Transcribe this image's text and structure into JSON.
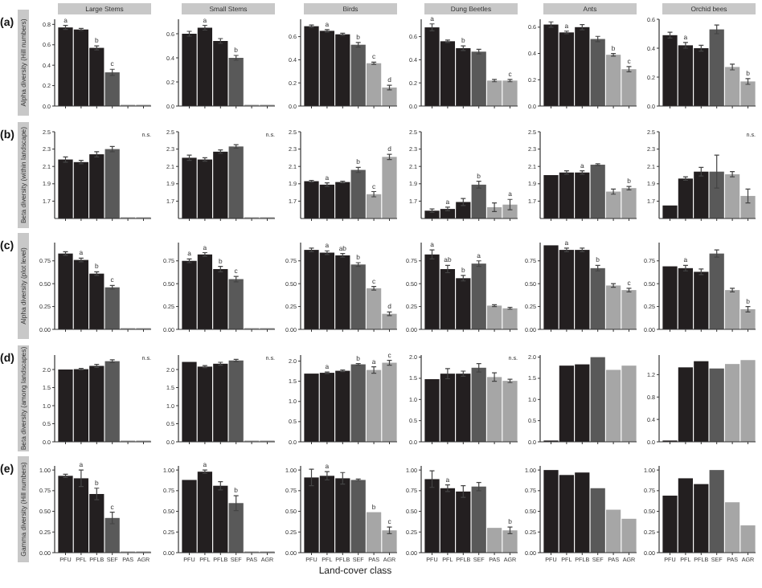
{
  "chart_data": [
    {
      "type": "bar",
      "title": "Large Stems",
      "subtitle": "(a)",
      "ylabel": "Alpha diversity (Hill numbers)",
      "categories": [
        "PFU",
        "PFL",
        "PFLB",
        "SEF",
        "PAS",
        "AGR"
      ],
      "values": [
        0.77,
        0.75,
        0.57,
        0.33,
        null,
        null
      ],
      "errors": [
        0.02,
        0.01,
        0.02,
        0.03,
        null,
        null
      ],
      "colors": [
        "#231f20",
        "#231f20",
        "#231f20",
        "#595959",
        "#a6a6a6",
        "#a6a6a6"
      ],
      "ylim": [
        0,
        0.85
      ],
      "yticks": [
        {
          "value": 0,
          "label": "0.0"
        },
        {
          "value": 0.2,
          "label": "0.2"
        },
        {
          "value": 0.4,
          "label": "0.4"
        },
        {
          "value": 0.6,
          "label": "0.6"
        },
        {
          "value": 0.8,
          "label": "0.8"
        }
      ],
      "tick_labels": "y",
      "annotations": [
        {
          "text": "a",
          "x": "PFU",
          "y": 0.77
        },
        {
          "text": "b",
          "x": "PFLB",
          "y": 0.57
        },
        {
          "text": "c",
          "x": "SEF",
          "y": 0.33
        }
      ]
    },
    {
      "type": "bar",
      "title": "Small Stems",
      "categories": [
        "PFU",
        "PFL",
        "PFLB",
        "SEF",
        "PAS",
        "AGR"
      ],
      "values": [
        0.6,
        0.65,
        0.54,
        0.4,
        null,
        null
      ],
      "errors": [
        0.02,
        0.02,
        0.02,
        0.02,
        null,
        null
      ],
      "colors": [
        "#231f20",
        "#231f20",
        "#231f20",
        "#595959",
        "#a6a6a6",
        "#a6a6a6"
      ],
      "ylim": [
        0,
        0.72
      ],
      "yticks": [
        {
          "value": 0,
          "label": "0.0"
        },
        {
          "value": 0.2,
          "label": "0.2"
        },
        {
          "value": 0.4,
          "label": "0.4"
        },
        {
          "value": 0.6,
          "label": "0.6"
        }
      ],
      "tick_labels": "y",
      "annotations": [
        {
          "text": "a",
          "x": "PFL",
          "y": 0.65
        },
        {
          "text": "b",
          "x": "SEF",
          "y": 0.4
        }
      ]
    },
    {
      "type": "bar",
      "title": "Birds",
      "categories": [
        "PFU",
        "PFL",
        "PFLB",
        "SEF",
        "PAS",
        "AGR"
      ],
      "values": [
        0.69,
        0.65,
        0.62,
        0.53,
        0.37,
        0.16
      ],
      "errors": [
        0.01,
        0.01,
        0.01,
        0.02,
        0.01,
        0.02
      ],
      "colors": [
        "#231f20",
        "#231f20",
        "#231f20",
        "#595959",
        "#a6a6a6",
        "#a6a6a6"
      ],
      "ylim": [
        0,
        0.75
      ],
      "yticks": [
        {
          "value": 0,
          "label": "0.0"
        },
        {
          "value": 0.2,
          "label": "0.2"
        },
        {
          "value": 0.4,
          "label": "0.4"
        },
        {
          "value": 0.6,
          "label": "0.6"
        }
      ],
      "tick_labels": "y",
      "annotations": [
        {
          "text": "a",
          "x": "PFL",
          "y": 0.65
        },
        {
          "text": "b",
          "x": "SEF",
          "y": 0.53
        },
        {
          "text": "c",
          "x": "PAS",
          "y": 0.37
        },
        {
          "text": "d",
          "x": "AGR",
          "y": 0.16
        }
      ]
    },
    {
      "type": "bar",
      "title": "Dung Beetles",
      "categories": [
        "PFU",
        "PFL",
        "PFLB",
        "SEF",
        "PAS",
        "AGR"
      ],
      "values": [
        0.68,
        0.56,
        0.5,
        0.47,
        0.22,
        0.22
      ],
      "errors": [
        0.03,
        0.01,
        0.02,
        0.02,
        0.01,
        0.01
      ],
      "colors": [
        "#231f20",
        "#231f20",
        "#231f20",
        "#595959",
        "#a6a6a6",
        "#a6a6a6"
      ],
      "ylim": [
        0,
        0.75
      ],
      "yticks": [
        {
          "value": 0,
          "label": "0.0"
        },
        {
          "value": 0.2,
          "label": "0.2"
        },
        {
          "value": 0.4,
          "label": "0.4"
        },
        {
          "value": 0.6,
          "label": "0.6"
        }
      ],
      "tick_labels": "y",
      "annotations": [
        {
          "text": "a",
          "x": "PFU",
          "y": 0.68
        },
        {
          "text": "b",
          "x": "PFLB",
          "y": 0.5
        },
        {
          "text": "c",
          "x": "AGR",
          "y": 0.22
        }
      ]
    },
    {
      "type": "bar",
      "title": "Ants",
      "categories": [
        "PFU",
        "PFL",
        "PFLB",
        "SEF",
        "PAS",
        "AGR"
      ],
      "values": [
        0.62,
        0.56,
        0.6,
        0.51,
        0.39,
        0.28
      ],
      "errors": [
        0.02,
        0.01,
        0.02,
        0.02,
        0.01,
        0.02
      ],
      "colors": [
        "#231f20",
        "#231f20",
        "#231f20",
        "#595959",
        "#a6a6a6",
        "#a6a6a6"
      ],
      "ylim": [
        0,
        0.66
      ],
      "yticks": [
        {
          "value": 0,
          "label": "0.0"
        },
        {
          "value": 0.2,
          "label": "0.2"
        },
        {
          "value": 0.4,
          "label": "0.4"
        },
        {
          "value": 0.6,
          "label": "0.6"
        }
      ],
      "tick_labels": "y",
      "annotations": [
        {
          "text": "a",
          "x": "PFL",
          "y": 0.56
        },
        {
          "text": "b",
          "x": "PAS",
          "y": 0.39
        },
        {
          "text": "c",
          "x": "AGR",
          "y": 0.28
        }
      ]
    },
    {
      "type": "bar",
      "title": "Orchid bees",
      "categories": [
        "PFU",
        "PFL",
        "PFLB",
        "SEF",
        "PAS",
        "AGR"
      ],
      "values": [
        0.49,
        0.42,
        0.4,
        0.53,
        0.27,
        0.17
      ],
      "errors": [
        0.02,
        0.02,
        0.02,
        0.03,
        0.02,
        0.02
      ],
      "colors": [
        "#231f20",
        "#231f20",
        "#231f20",
        "#595959",
        "#a6a6a6",
        "#a6a6a6"
      ],
      "ylim": [
        0,
        0.6
      ],
      "yticks": [
        {
          "value": 0,
          "label": "0.0"
        },
        {
          "value": 0.2,
          "label": "0.2"
        },
        {
          "value": 0.4,
          "label": "0.4"
        },
        {
          "value": 0.6,
          "label": "0.6"
        }
      ],
      "tick_labels": "y",
      "annotations": [
        {
          "text": "a",
          "x": "PFL",
          "y": 0.42
        },
        {
          "text": "b",
          "x": "AGR",
          "y": 0.17
        }
      ]
    },
    {
      "type": "bar",
      "subtitle": "(b)",
      "ylabel": "Beta diversity (within landscape)",
      "categories": [
        "PFU",
        "PFL",
        "PFLB",
        "SEF",
        "PAS",
        "AGR"
      ],
      "values": [
        2.18,
        2.15,
        2.24,
        2.3,
        null,
        null
      ],
      "errors": [
        0.03,
        0.02,
        0.03,
        0.03,
        null,
        null
      ],
      "colors": [
        "#231f20",
        "#231f20",
        "#231f20",
        "#595959",
        "#a6a6a6",
        "#a6a6a6"
      ],
      "ylim": [
        1.5,
        2.5
      ],
      "yticks": [
        1.7,
        1.9,
        2.1,
        2.3,
        2.5
      ],
      "tick_labels": "y",
      "annotations": [
        "n.s."
      ]
    },
    {
      "type": "bar",
      "categories": [
        "PFU",
        "PFL",
        "PFLB",
        "SEF",
        "PAS",
        "AGR"
      ],
      "values": [
        2.2,
        2.18,
        2.27,
        2.33,
        null,
        null
      ],
      "errors": [
        0.03,
        0.02,
        0.02,
        0.02,
        null,
        null
      ],
      "colors": [
        "#231f20",
        "#231f20",
        "#231f20",
        "#595959",
        "#a6a6a6",
        "#a6a6a6"
      ],
      "ylim": [
        1.5,
        2.5
      ],
      "yticks": [
        1.7,
        1.9,
        2.1,
        2.3,
        2.5
      ],
      "tick_labels": "y",
      "annotations": [
        "n.s."
      ]
    },
    {
      "type": "bar",
      "categories": [
        "PFU",
        "PFL",
        "PFLB",
        "SEF",
        "PAS",
        "AGR"
      ],
      "values": [
        1.93,
        1.89,
        1.92,
        2.06,
        1.78,
        2.21
      ],
      "errors": [
        0.01,
        0.02,
        0.01,
        0.03,
        0.03,
        0.03
      ],
      "colors": [
        "#231f20",
        "#231f20",
        "#231f20",
        "#595959",
        "#a6a6a6",
        "#a6a6a6"
      ],
      "ylim": [
        1.5,
        2.5
      ],
      "yticks": [
        1.7,
        1.9,
        2.1,
        2.3,
        2.5
      ],
      "tick_labels": "y",
      "annotations": [
        {
          "text": "a",
          "x": "PFL",
          "y": 1.89
        },
        {
          "text": "b",
          "x": "SEF",
          "y": 2.06
        },
        {
          "text": "c",
          "x": "PAS",
          "y": 1.78
        },
        {
          "text": "d",
          "x": "AGR",
          "y": 2.21
        }
      ]
    },
    {
      "type": "bar",
      "categories": [
        "PFU",
        "PFL",
        "PFLB",
        "SEF",
        "PAS",
        "AGR"
      ],
      "values": [
        1.59,
        1.61,
        1.69,
        1.89,
        1.63,
        1.66
      ],
      "errors": [
        0.02,
        0.02,
        0.04,
        0.04,
        0.05,
        0.06
      ],
      "colors": [
        "#231f20",
        "#231f20",
        "#231f20",
        "#595959",
        "#a6a6a6",
        "#a6a6a6"
      ],
      "ylim": [
        1.5,
        2.5
      ],
      "yticks": [
        1.7,
        1.9,
        2.1,
        2.3,
        2.5
      ],
      "tick_labels": "y",
      "annotations": [
        {
          "text": "a",
          "x": "PFL",
          "y": 1.61
        },
        {
          "text": "b",
          "x": "SEF",
          "y": 1.89
        },
        {
          "text": "a",
          "x": "AGR",
          "y": 1.66
        }
      ]
    },
    {
      "type": "bar",
      "categories": [
        "PFU",
        "PFL",
        "PFLB",
        "SEF",
        "PAS",
        "AGR"
      ],
      "values": [
        2.0,
        2.03,
        2.03,
        2.12,
        1.81,
        1.85
      ],
      "errors": [
        null,
        0.02,
        0.02,
        0.01,
        0.03,
        0.02
      ],
      "colors": [
        "#231f20",
        "#231f20",
        "#231f20",
        "#595959",
        "#a6a6a6",
        "#a6a6a6"
      ],
      "ylim": [
        1.5,
        2.5
      ],
      "yticks": [
        1.7,
        1.9,
        2.1,
        2.3,
        2.5
      ],
      "tick_labels": "y",
      "annotations": [
        {
          "text": "a",
          "x": "PFLB",
          "y": 2.03
        },
        {
          "text": "b",
          "x": "AGR",
          "y": 1.85
        }
      ]
    },
    {
      "type": "bar",
      "categories": [
        "PFU",
        "PFL",
        "PFLB",
        "SEF",
        "PAS",
        "AGR"
      ],
      "values": [
        1.65,
        1.96,
        2.04,
        2.04,
        2.01,
        1.76
      ],
      "errors": [
        null,
        0.02,
        0.05,
        0.19,
        0.03,
        0.08
      ],
      "colors": [
        "#231f20",
        "#231f20",
        "#231f20",
        "#595959",
        "#a6a6a6",
        "#a6a6a6"
      ],
      "ylim": [
        1.5,
        2.5
      ],
      "yticks": [
        1.7,
        1.9,
        2.1,
        2.3,
        2.5
      ],
      "tick_labels": "y",
      "annotations": [
        "n.s."
      ]
    },
    {
      "type": "bar",
      "subtitle": "(c)",
      "ylabel": "Alpha diversity (plot level)",
      "categories": [
        "PFU",
        "PFL",
        "PFLB",
        "SEF",
        "PAS",
        "AGR"
      ],
      "values": [
        0.83,
        0.76,
        0.61,
        0.46,
        null,
        null
      ],
      "errors": [
        0.02,
        0.02,
        0.02,
        0.02,
        null,
        null
      ],
      "colors": [
        "#231f20",
        "#231f20",
        "#231f20",
        "#595959",
        "#a6a6a6",
        "#a6a6a6"
      ],
      "ylim": [
        0,
        0.95
      ],
      "yticks": [
        {
          "value": 0,
          "label": "0.00"
        },
        {
          "value": 0.25,
          "label": "0.25"
        },
        {
          "value": 0.5,
          "label": "0.50"
        },
        {
          "value": 0.75,
          "label": "0.75"
        }
      ],
      "tick_labels": "y",
      "annotations": [
        {
          "text": "a",
          "x": "PFL",
          "y": 0.76
        },
        {
          "text": "b",
          "x": "PFLB",
          "y": 0.61
        },
        {
          "text": "c",
          "x": "SEF",
          "y": 0.46
        }
      ]
    },
    {
      "type": "bar",
      "categories": [
        "PFU",
        "PFL",
        "PFLB",
        "SEF",
        "PAS",
        "AGR"
      ],
      "values": [
        0.75,
        0.82,
        0.66,
        0.55,
        null,
        null
      ],
      "errors": [
        0.02,
        0.02,
        0.03,
        0.03,
        null,
        null
      ],
      "colors": [
        "#231f20",
        "#231f20",
        "#231f20",
        "#595959",
        "#a6a6a6",
        "#a6a6a6"
      ],
      "ylim": [
        0,
        0.95
      ],
      "yticks": [
        {
          "value": 0,
          "label": "0.00"
        },
        {
          "value": 0.25,
          "label": "0.25"
        },
        {
          "value": 0.5,
          "label": "0.50"
        },
        {
          "value": 0.75,
          "label": "0.75"
        }
      ],
      "tick_labels": "y",
      "annotations": [
        {
          "text": "a",
          "x": "PFU",
          "y": 0.75
        },
        {
          "text": "a",
          "x": "PFL",
          "y": 0.82
        },
        {
          "text": "b",
          "x": "PFLB",
          "y": 0.66
        },
        {
          "text": "c",
          "x": "SEF",
          "y": 0.55
        }
      ]
    },
    {
      "type": "bar",
      "categories": [
        "PFU",
        "PFL",
        "PFLB",
        "SEF",
        "PAS",
        "AGR"
      ],
      "values": [
        0.87,
        0.84,
        0.81,
        0.71,
        0.45,
        0.17
      ],
      "errors": [
        0.02,
        0.02,
        0.02,
        0.02,
        0.02,
        0.02
      ],
      "colors": [
        "#231f20",
        "#231f20",
        "#231f20",
        "#595959",
        "#a6a6a6",
        "#a6a6a6"
      ],
      "ylim": [
        0,
        0.95
      ],
      "yticks": [
        {
          "value": 0,
          "label": "0.00"
        },
        {
          "value": 0.25,
          "label": "0.25"
        },
        {
          "value": 0.5,
          "label": "0.50"
        },
        {
          "value": 0.75,
          "label": "0.75"
        }
      ],
      "tick_labels": "y",
      "annotations": [
        {
          "text": "a",
          "x": "PFL",
          "y": 0.84
        },
        {
          "text": "ab",
          "x": "PFLB",
          "y": 0.81
        },
        {
          "text": "b",
          "x": "SEF",
          "y": 0.71
        },
        {
          "text": "c",
          "x": "PAS",
          "y": 0.45
        },
        {
          "text": "d",
          "x": "AGR",
          "y": 0.17
        }
      ]
    },
    {
      "type": "bar",
      "categories": [
        "PFU",
        "PFL",
        "PFLB",
        "SEF",
        "PAS",
        "AGR"
      ],
      "values": [
        0.82,
        0.66,
        0.56,
        0.72,
        0.26,
        0.23
      ],
      "errors": [
        0.05,
        0.04,
        0.03,
        0.03,
        0.01,
        0.01
      ],
      "colors": [
        "#231f20",
        "#231f20",
        "#231f20",
        "#595959",
        "#a6a6a6",
        "#a6a6a6"
      ],
      "ylim": [
        0,
        0.95
      ],
      "yticks": [
        {
          "value": 0,
          "label": "0.00"
        },
        {
          "value": 0.25,
          "label": "0.25"
        },
        {
          "value": 0.5,
          "label": "0.50"
        },
        {
          "value": 0.75,
          "label": "0.75"
        }
      ],
      "tick_labels": "y",
      "annotations": [
        {
          "text": "a",
          "x": "PFU",
          "y": 0.82
        },
        {
          "text": "ab",
          "x": "PFL",
          "y": 0.66
        },
        {
          "text": "b",
          "x": "PFLB",
          "y": 0.56
        },
        {
          "text": "a",
          "x": "SEF",
          "y": 0.72
        }
      ]
    },
    {
      "type": "bar",
      "categories": [
        "PFU",
        "PFL",
        "PFLB",
        "SEF",
        "PAS",
        "AGR"
      ],
      "values": [
        0.92,
        0.87,
        0.87,
        0.67,
        0.48,
        0.43
      ],
      "errors": [
        null,
        0.02,
        0.02,
        0.03,
        0.02,
        0.02
      ],
      "colors": [
        "#231f20",
        "#231f20",
        "#231f20",
        "#595959",
        "#a6a6a6",
        "#a6a6a6"
      ],
      "ylim": [
        0,
        0.95
      ],
      "yticks": [
        {
          "value": 0,
          "label": "0.00"
        },
        {
          "value": 0.25,
          "label": "0.25"
        },
        {
          "value": 0.5,
          "label": "0.50"
        },
        {
          "value": 0.75,
          "label": "0.75"
        }
      ],
      "tick_labels": "y",
      "annotations": [
        {
          "text": "a",
          "x": "PFL",
          "y": 0.87
        },
        {
          "text": "b",
          "x": "SEF",
          "y": 0.67
        },
        {
          "text": "c",
          "x": "AGR",
          "y": 0.43
        }
      ]
    },
    {
      "type": "bar",
      "categories": [
        "PFU",
        "PFL",
        "PFLB",
        "SEF",
        "PAS",
        "AGR"
      ],
      "values": [
        0.69,
        0.67,
        0.63,
        0.83,
        0.43,
        0.22
      ],
      "errors": [
        null,
        0.03,
        0.03,
        0.04,
        0.02,
        0.03
      ],
      "colors": [
        "#231f20",
        "#231f20",
        "#231f20",
        "#595959",
        "#a6a6a6",
        "#a6a6a6"
      ],
      "ylim": [
        0,
        0.95
      ],
      "yticks": [
        {
          "value": 0,
          "label": "0.00"
        },
        {
          "value": 0.25,
          "label": "0.25"
        },
        {
          "value": 0.5,
          "label": "0.50"
        },
        {
          "value": 0.75,
          "label": "0.75"
        }
      ],
      "tick_labels": "y",
      "annotations": [
        {
          "text": "a",
          "x": "PFL",
          "y": 0.67
        },
        {
          "text": "b",
          "x": "AGR",
          "y": 0.22
        }
      ]
    },
    {
      "type": "bar",
      "subtitle": "(d)",
      "ylabel": "Beta diversity (among landscapes)",
      "categories": [
        "PFU",
        "PFL",
        "PFLB",
        "SEF",
        "PAS",
        "AGR"
      ],
      "values": [
        2.0,
        2.01,
        2.1,
        2.23,
        null,
        null
      ],
      "errors": [
        null,
        0.02,
        0.04,
        0.04,
        null,
        null
      ],
      "colors": [
        "#231f20",
        "#231f20",
        "#231f20",
        "#595959",
        "#a6a6a6",
        "#a6a6a6"
      ],
      "ylim": [
        0,
        2.4
      ],
      "yticks": [
        {
          "value": 0,
          "label": "0.0"
        },
        {
          "value": 0.5,
          "label": "0.5"
        },
        {
          "value": 1,
          "label": "1.0"
        },
        {
          "value": 1.5,
          "label": "1.5"
        },
        {
          "value": 2,
          "label": "2.0"
        }
      ],
      "tick_labels": "y",
      "annotations": [
        "n.s."
      ]
    },
    {
      "type": "bar",
      "categories": [
        "PFU",
        "PFL",
        "PFLB",
        "SEF",
        "PAS",
        "AGR"
      ],
      "values": [
        2.21,
        2.08,
        2.16,
        2.25,
        null,
        null
      ],
      "errors": [
        null,
        0.03,
        0.04,
        0.03,
        null,
        null
      ],
      "colors": [
        "#231f20",
        "#231f20",
        "#231f20",
        "#595959",
        "#a6a6a6",
        "#a6a6a6"
      ],
      "ylim": [
        0,
        2.4
      ],
      "yticks": [
        {
          "value": 0,
          "label": "0.0"
        },
        {
          "value": 0.5,
          "label": "0.5"
        },
        {
          "value": 1,
          "label": "1.0"
        },
        {
          "value": 1.5,
          "label": "1.5"
        },
        {
          "value": 2,
          "label": "2.0"
        }
      ],
      "tick_labels": "y",
      "annotations": [
        "n.s."
      ]
    },
    {
      "type": "bar",
      "categories": [
        "PFU",
        "PFL",
        "PFLB",
        "SEF",
        "PAS",
        "AGR"
      ],
      "values": [
        1.69,
        1.71,
        1.76,
        1.92,
        1.78,
        1.96
      ],
      "errors": [
        null,
        0.02,
        0.02,
        0.02,
        0.08,
        0.06
      ],
      "colors": [
        "#231f20",
        "#231f20",
        "#231f20",
        "#595959",
        "#a6a6a6",
        "#a6a6a6"
      ],
      "ylim": [
        0,
        2.15
      ],
      "yticks": [
        {
          "value": 0,
          "label": "0.0"
        },
        {
          "value": 0.5,
          "label": "0.5"
        },
        {
          "value": 1,
          "label": "1.0"
        },
        {
          "value": 1.5,
          "label": "1.5"
        },
        {
          "value": 2,
          "label": "2.0"
        }
      ],
      "tick_labels": "y",
      "annotations": [
        {
          "text": "a",
          "x": "PFL",
          "y": 1.71
        },
        {
          "text": "b",
          "x": "SEF",
          "y": 1.92
        },
        {
          "text": "a",
          "x": "PAS",
          "y": 1.78
        },
        {
          "text": "c",
          "x": "AGR",
          "y": 1.96
        }
      ]
    },
    {
      "type": "bar",
      "categories": [
        "PFU",
        "PFL",
        "PFLB",
        "SEF",
        "PAS",
        "AGR"
      ],
      "values": [
        1.48,
        1.61,
        1.61,
        1.75,
        1.53,
        1.44
      ],
      "errors": [
        null,
        0.12,
        0.06,
        0.1,
        0.1,
        0.04
      ],
      "colors": [
        "#231f20",
        "#231f20",
        "#231f20",
        "#595959",
        "#a6a6a6",
        "#a6a6a6"
      ],
      "ylim": [
        0,
        2.05
      ],
      "yticks": [
        {
          "value": 0,
          "label": "0.0"
        },
        {
          "value": 0.5,
          "label": "0.5"
        },
        {
          "value": 1,
          "label": "1.0"
        },
        {
          "value": 1.5,
          "label": "1.5"
        },
        {
          "value": 2,
          "label": "2.0"
        }
      ],
      "tick_labels": "y",
      "annotations": [
        "n.s."
      ]
    },
    {
      "type": "bar",
      "categories": [
        "PFU",
        "PFL",
        "PFLB",
        "SEF",
        "PAS",
        "AGR"
      ],
      "values": [
        null,
        1.8,
        1.83,
        2.0,
        1.7,
        1.8
      ],
      "colors": [
        "#231f20",
        "#231f20",
        "#231f20",
        "#595959",
        "#a6a6a6",
        "#a6a6a6"
      ],
      "ylim": [
        0,
        2.05
      ],
      "yticks": [
        {
          "value": 0,
          "label": "0.0"
        },
        {
          "value": 0.5,
          "label": "0.5"
        },
        {
          "value": 1,
          "label": "1.0"
        },
        {
          "value": 1.5,
          "label": "1.5"
        },
        {
          "value": 2,
          "label": "2.0"
        }
      ],
      "tick_labels": "y"
    },
    {
      "type": "bar",
      "categories": [
        "PFU",
        "PFL",
        "PFLB",
        "SEF",
        "PAS",
        "AGR"
      ],
      "values": [
        null,
        1.33,
        1.44,
        1.31,
        1.39,
        1.46
      ],
      "colors": [
        "#231f20",
        "#231f20",
        "#231f20",
        "#595959",
        "#a6a6a6",
        "#a6a6a6"
      ],
      "ylim": [
        0,
        1.55
      ],
      "yticks": [
        {
          "value": 0,
          "label": "0.0"
        },
        {
          "value": 0.4,
          "label": "0.4"
        },
        {
          "value": 0.8,
          "label": "0.8"
        },
        {
          "value": 1.2,
          "label": "1.2"
        }
      ],
      "tick_labels": "y"
    },
    {
      "type": "bar",
      "subtitle": "(e)",
      "ylabel": "Gamma diversity (Hill numbers)",
      "categories": [
        "PFU",
        "PFL",
        "PFLB",
        "SEF",
        "PAS",
        "AGR"
      ],
      "values": [
        0.93,
        0.9,
        0.71,
        0.42,
        null,
        null
      ],
      "errors": [
        0.02,
        0.1,
        0.07,
        0.07,
        null,
        null
      ],
      "colors": [
        "#231f20",
        "#231f20",
        "#231f20",
        "#595959",
        "#a6a6a6",
        "#a6a6a6"
      ],
      "ylim": [
        0,
        1.05
      ],
      "yticks": [
        {
          "value": 0,
          "label": "0.00"
        },
        {
          "value": 0.25,
          "label": "0.25"
        },
        {
          "value": 0.5,
          "label": "0.50"
        },
        {
          "value": 0.75,
          "label": "0.75"
        },
        {
          "value": 1,
          "label": "1.00"
        }
      ],
      "annotations": [
        {
          "text": "a",
          "x": "PFL",
          "y": 0.9
        },
        {
          "text": "b",
          "x": "PFLB",
          "y": 0.71
        },
        {
          "text": "c",
          "x": "SEF",
          "y": 0.42
        }
      ]
    },
    {
      "type": "bar",
      "categories": [
        "PFU",
        "PFL",
        "PFLB",
        "SEF",
        "PAS",
        "AGR"
      ],
      "values": [
        0.88,
        0.98,
        0.81,
        0.6,
        null,
        null
      ],
      "errors": [
        null,
        0.02,
        0.05,
        0.09,
        null,
        null
      ],
      "colors": [
        "#231f20",
        "#231f20",
        "#231f20",
        "#595959",
        "#a6a6a6",
        "#a6a6a6"
      ],
      "ylim": [
        0,
        1.05
      ],
      "yticks": [
        {
          "value": 0,
          "label": "0.00"
        },
        {
          "value": 0.25,
          "label": "0.25"
        },
        {
          "value": 0.5,
          "label": "0.50"
        },
        {
          "value": 0.75,
          "label": "0.75"
        },
        {
          "value": 1,
          "label": "1.00"
        }
      ],
      "annotations": [
        {
          "text": "a",
          "x": "PFL",
          "y": 0.98
        },
        {
          "text": "b",
          "x": "SEF",
          "y": 0.6
        }
      ]
    },
    {
      "type": "bar",
      "xlabel": "Land-cover class",
      "categories": [
        "PFU",
        "PFL",
        "PFLB",
        "SEF",
        "PAS",
        "AGR"
      ],
      "values": [
        0.91,
        0.93,
        0.9,
        0.88,
        0.49,
        0.27
      ],
      "errors": [
        0.1,
        0.05,
        0.07,
        0.01,
        null,
        0.04
      ],
      "colors": [
        "#231f20",
        "#231f20",
        "#231f20",
        "#595959",
        "#a6a6a6",
        "#a6a6a6"
      ],
      "ylim": [
        0,
        1.05
      ],
      "yticks": [
        {
          "value": 0,
          "label": "0.00"
        },
        {
          "value": 0.25,
          "label": "0.25"
        },
        {
          "value": 0.5,
          "label": "0.50"
        },
        {
          "value": 0.75,
          "label": "0.75"
        },
        {
          "value": 1,
          "label": "1.00"
        }
      ],
      "annotations": [
        {
          "text": "a",
          "x": "PFL",
          "y": 0.93
        },
        {
          "text": "b",
          "x": "PAS",
          "y": 0.49
        },
        {
          "text": "c",
          "x": "AGR",
          "y": 0.27
        }
      ]
    },
    {
      "type": "bar",
      "categories": [
        "PFU",
        "PFL",
        "PFLB",
        "SEF",
        "PAS",
        "AGR"
      ],
      "values": [
        0.89,
        0.78,
        0.74,
        0.8,
        0.3,
        0.27
      ],
      "errors": [
        0.1,
        0.04,
        0.07,
        0.05,
        null,
        0.04
      ],
      "colors": [
        "#231f20",
        "#231f20",
        "#231f20",
        "#595959",
        "#a6a6a6",
        "#a6a6a6"
      ],
      "ylim": [
        0,
        1.05
      ],
      "yticks": [
        {
          "value": 0,
          "label": "0.00"
        },
        {
          "value": 0.25,
          "label": "0.25"
        },
        {
          "value": 0.5,
          "label": "0.50"
        },
        {
          "value": 0.75,
          "label": "0.75"
        },
        {
          "value": 1,
          "label": "1.00"
        }
      ],
      "annotations": [
        {
          "text": "a",
          "x": "PFL",
          "y": 0.78
        },
        {
          "text": "b",
          "x": "AGR",
          "y": 0.27
        }
      ]
    },
    {
      "type": "bar",
      "categories": [
        "PFU",
        "PFL",
        "PFLB",
        "SEF",
        "PAS",
        "AGR"
      ],
      "values": [
        1.0,
        0.94,
        0.97,
        0.78,
        0.52,
        0.41
      ],
      "colors": [
        "#231f20",
        "#231f20",
        "#231f20",
        "#595959",
        "#a6a6a6",
        "#a6a6a6"
      ],
      "ylim": [
        0,
        1.05
      ],
      "yticks": [
        {
          "value": 0,
          "label": "0.00"
        },
        {
          "value": 0.25,
          "label": "0.25"
        },
        {
          "value": 0.5,
          "label": "0.50"
        },
        {
          "value": 0.75,
          "label": "0.75"
        },
        {
          "value": 1,
          "label": "1.00"
        }
      ]
    },
    {
      "type": "bar",
      "categories": [
        "PFU",
        "PFL",
        "PFLB",
        "SEF",
        "PAS",
        "AGR"
      ],
      "values": [
        0.69,
        0.9,
        0.83,
        1.0,
        0.61,
        0.33
      ],
      "colors": [
        "#231f20",
        "#231f20",
        "#231f20",
        "#595959",
        "#a6a6a6",
        "#a6a6a6"
      ],
      "ylim": [
        0,
        1.05
      ],
      "yticks": [
        {
          "value": 0,
          "label": "0.00"
        },
        {
          "value": 0.25,
          "label": "0.25"
        },
        {
          "value": 0.5,
          "label": "0.50"
        },
        {
          "value": 0.75,
          "label": "0.75"
        },
        {
          "value": 1,
          "label": "1.00"
        }
      ]
    }
  ]
}
